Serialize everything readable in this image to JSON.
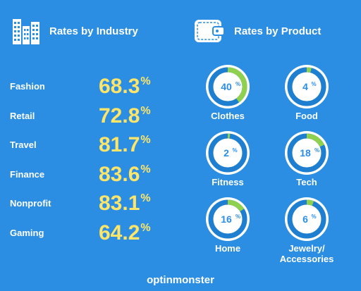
{
  "industry": {
    "title": "Rates by Industry",
    "icon": "city-buildings-icon",
    "items": [
      {
        "label": "Fashion",
        "value": "68.3",
        "unit": "%"
      },
      {
        "label": "Retail",
        "value": "72.8",
        "unit": "%"
      },
      {
        "label": "Travel",
        "value": "81.7",
        "unit": "%"
      },
      {
        "label": "Finance",
        "value": "83.6",
        "unit": "%"
      },
      {
        "label": "Nonprofit",
        "value": "83.1",
        "unit": "%"
      },
      {
        "label": "Gaming",
        "value": "64.2",
        "unit": "%"
      }
    ]
  },
  "product": {
    "title": "Rates by Product",
    "icon": "wallet-icon",
    "items": [
      {
        "label": "Clothes",
        "value": "40",
        "unit": "%",
        "fraction": 0.4
      },
      {
        "label": "Food",
        "value": "4",
        "unit": "%",
        "fraction": 0.04
      },
      {
        "label": "Fitness",
        "value": "2",
        "unit": "%",
        "fraction": 0.02
      },
      {
        "label": "Tech",
        "value": "18",
        "unit": "%",
        "fraction": 0.18
      },
      {
        "label": "Home",
        "value": "16",
        "unit": "%",
        "fraction": 0.16
      },
      {
        "label": "Jewelry/\nAccessories",
        "value": "6",
        "unit": "%",
        "fraction": 0.06
      }
    ]
  },
  "footer": {
    "brand": "optinmonster"
  },
  "colors": {
    "background": "#2b8ee3",
    "value_yellow": "#fde56a",
    "ring_green": "#8fd14f",
    "ring_track": "#1e7fd0",
    "ring_fill": "#ffffff"
  }
}
